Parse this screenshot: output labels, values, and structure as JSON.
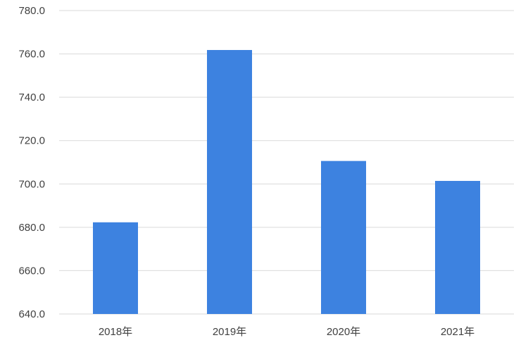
{
  "chart_data": {
    "type": "bar",
    "categories": [
      "2018年",
      "2019年",
      "2020年",
      "2021年"
    ],
    "values": [
      682.3,
      761.8,
      710.6,
      701.4
    ],
    "title": "",
    "xlabel": "",
    "ylabel": "",
    "ylim": [
      640,
      780
    ],
    "yticks": [
      "640.0",
      "660.0",
      "680.0",
      "700.0",
      "720.0",
      "740.0",
      "760.0",
      "780.0"
    ],
    "grid": true,
    "bar_color": "#3d82e0"
  }
}
